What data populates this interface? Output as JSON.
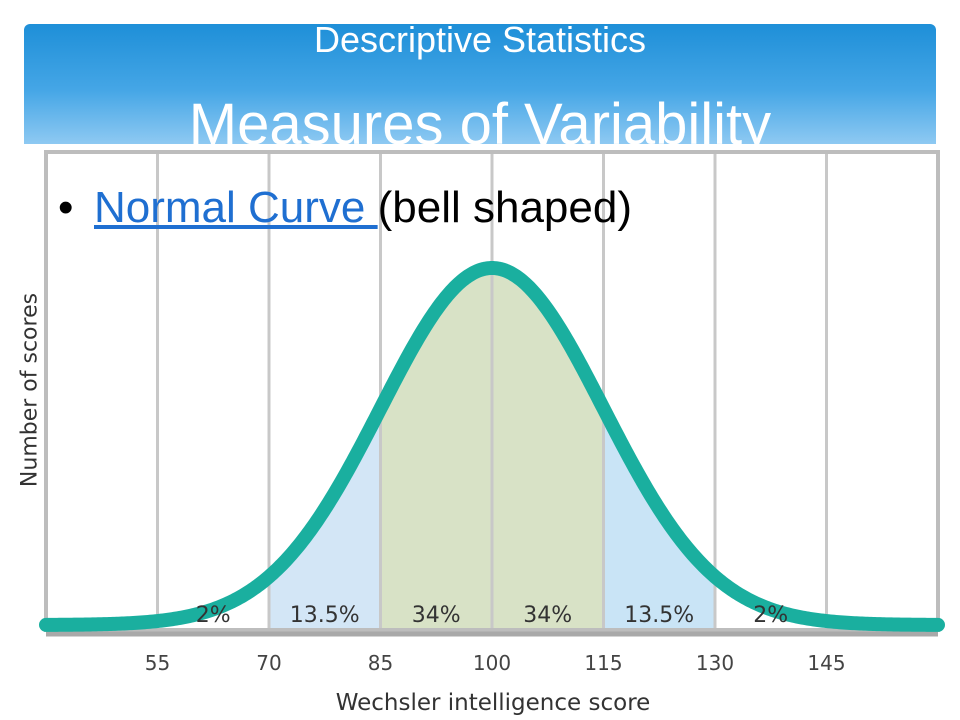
{
  "header": {
    "subtitle": "Descriptive Statistics",
    "title": "Measures of Variability"
  },
  "bullet": {
    "link_text": "Normal Curve ",
    "rest_text": "(bell shaped)"
  },
  "chart_data": {
    "type": "area",
    "distribution": "normal",
    "mean": 100,
    "sd": 15,
    "xlabel": "Wechsler intelligence score",
    "ylabel": "Number of scores",
    "xlim": [
      40,
      160
    ],
    "x_ticks": [
      55,
      70,
      85,
      100,
      115,
      130,
      145
    ],
    "grid": true,
    "regions": [
      {
        "from": 55,
        "to": 70,
        "label": "2%",
        "color": "#ffffff"
      },
      {
        "from": 70,
        "to": 85,
        "label": "13.5%",
        "color": "#d3e6f6"
      },
      {
        "from": 85,
        "to": 100,
        "label": "34%",
        "color": "#d8e2c6"
      },
      {
        "from": 100,
        "to": 115,
        "label": "34%",
        "color": "#d8e2c6"
      },
      {
        "from": 115,
        "to": 130,
        "label": "13.5%",
        "color": "#c9e4f6"
      },
      {
        "from": 130,
        "to": 145,
        "label": "2%",
        "color": "#ffffff"
      }
    ],
    "curve_color": "#1aaf9f",
    "gridline_color": "#c8c8c8",
    "frame_color": "#bdbdbd"
  }
}
